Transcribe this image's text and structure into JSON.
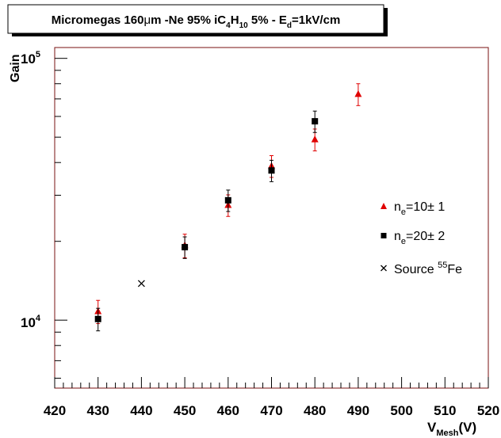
{
  "chart_data": {
    "type": "scatter",
    "title_parts": {
      "a": "Micromegas 160",
      "mu": "μ",
      "b": "m -Ne 95% iC",
      "sub1": "4",
      "c": "H",
      "sub2": "10",
      "d": " 5% - E",
      "sub3": "d",
      "e": "=1kV/cm"
    },
    "xlabel": {
      "main": "V",
      "sub": "Mesh",
      "tail": "(V)"
    },
    "ylabel": "Gain",
    "x_ticks": [
      420,
      430,
      440,
      450,
      460,
      470,
      480,
      490,
      500,
      510,
      520
    ],
    "xlim": [
      420,
      520
    ],
    "ylim": [
      5500,
      110000
    ],
    "y_scale": "log",
    "y_tick_labels": [
      {
        "value": 10000,
        "base": "10",
        "exp": "4"
      },
      {
        "value": 100000,
        "base": "10",
        "exp": "5"
      }
    ],
    "legend_position": "right",
    "colors": {
      "red": "#e00000",
      "black": "#000000",
      "frame": "#7a1010"
    },
    "series": [
      {
        "name": {
          "pre": "n",
          "sub": "e",
          "post": "=10± 1"
        },
        "marker": "triangle",
        "color": "#e00000",
        "points": [
          {
            "x": 430,
            "y": 10800,
            "err": 1100
          },
          {
            "x": 450,
            "y": 19300,
            "err": 2000
          },
          {
            "x": 460,
            "y": 27500,
            "err": 2600
          },
          {
            "x": 470,
            "y": 38800,
            "err": 3700
          },
          {
            "x": 480,
            "y": 49000,
            "err": 4700
          },
          {
            "x": 490,
            "y": 73000,
            "err": 7000
          }
        ]
      },
      {
        "name": {
          "pre": "n",
          "sub": "e",
          "post": "=20± 2"
        },
        "marker": "square",
        "color": "#000000",
        "points": [
          {
            "x": 430,
            "y": 10100,
            "err": 1000
          },
          {
            "x": 450,
            "y": 19000,
            "err": 1800
          },
          {
            "x": 460,
            "y": 28700,
            "err": 2700
          },
          {
            "x": 470,
            "y": 37300,
            "err": 3500
          },
          {
            "x": 480,
            "y": 57500,
            "err": 5400
          }
        ]
      },
      {
        "name": {
          "pre": "Source ",
          "sup": "55",
          "post": "Fe"
        },
        "marker": "cross",
        "color": "#000000",
        "points": [
          {
            "x": 440,
            "y": 13800,
            "err": 0
          }
        ]
      }
    ]
  }
}
